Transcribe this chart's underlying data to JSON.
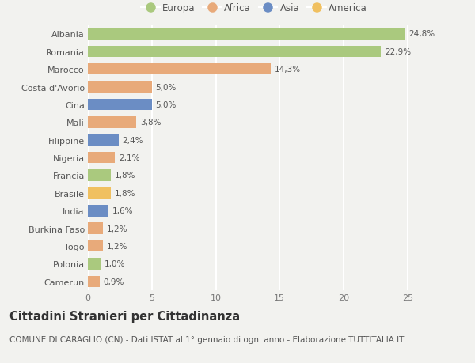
{
  "countries": [
    "Albania",
    "Romania",
    "Marocco",
    "Costa d'Avorio",
    "Cina",
    "Mali",
    "Filippine",
    "Nigeria",
    "Francia",
    "Brasile",
    "India",
    "Burkina Faso",
    "Togo",
    "Polonia",
    "Camerun"
  ],
  "values": [
    24.8,
    22.9,
    14.3,
    5.0,
    5.0,
    3.8,
    2.4,
    2.1,
    1.8,
    1.8,
    1.6,
    1.2,
    1.2,
    1.0,
    0.9
  ],
  "labels": [
    "24,8%",
    "22,9%",
    "14,3%",
    "5,0%",
    "5,0%",
    "3,8%",
    "2,4%",
    "2,1%",
    "1,8%",
    "1,8%",
    "1,6%",
    "1,2%",
    "1,2%",
    "1,0%",
    "0,9%"
  ],
  "continents": [
    "Europa",
    "Europa",
    "Africa",
    "Africa",
    "Asia",
    "Africa",
    "Asia",
    "Africa",
    "Europa",
    "America",
    "Asia",
    "Africa",
    "Africa",
    "Europa",
    "Africa"
  ],
  "continent_colors": {
    "Europa": "#aac97e",
    "Africa": "#e8aa7a",
    "Asia": "#6b8dc4",
    "America": "#f0c060"
  },
  "legend_order": [
    "Europa",
    "Africa",
    "Asia",
    "America"
  ],
  "title": "Cittadini Stranieri per Cittadinanza",
  "subtitle": "COMUNE DI CARAGLIO (CN) - Dati ISTAT al 1° gennaio di ogni anno - Elaborazione TUTTITALIA.IT",
  "xlim": [
    0,
    26
  ],
  "xticks": [
    0,
    5,
    10,
    15,
    20,
    25
  ],
  "background_color": "#f2f2ef",
  "plot_bg_color": "#f2f2ef",
  "bar_height": 0.65,
  "grid_color": "#ffffff",
  "title_fontsize": 10.5,
  "subtitle_fontsize": 7.5,
  "label_fontsize": 7.5,
  "tick_fontsize": 8,
  "legend_fontsize": 8.5
}
